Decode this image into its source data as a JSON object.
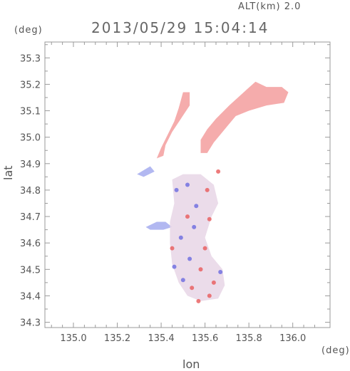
{
  "header": {
    "altitude": "ALT(km)  2.0",
    "timestamp": "2013/05/29 15:04:14",
    "y_unit": "(deg)",
    "x_unit": "(deg)",
    "xlabel": "lon",
    "ylabel": "lat"
  },
  "chart_data": {
    "type": "heatmap",
    "title": "2013/05/29 15:04:14",
    "subtitle": "ALT(km)  2.0",
    "xlabel": "lon",
    "ylabel": "lat",
    "x_unit": "(deg)",
    "y_unit": "(deg)",
    "xlim": [
      134.87,
      136.17
    ],
    "ylim": [
      34.28,
      35.36
    ],
    "x_ticks": [
      135.0,
      135.2,
      135.4,
      135.6,
      135.8,
      136.0
    ],
    "x_tick_labels": [
      "135.0",
      "135.2",
      "135.4",
      "135.6",
      "135.8",
      "136.0"
    ],
    "y_ticks": [
      34.3,
      34.4,
      34.5,
      34.6,
      34.7,
      34.8,
      34.9,
      35.0,
      35.1,
      35.2,
      35.3
    ],
    "y_tick_labels": [
      "34.3",
      "34.4",
      "34.5",
      "34.6",
      "34.7",
      "34.8",
      "34.9",
      "35.0",
      "35.1",
      "35.2",
      "35.3"
    ],
    "grid": false,
    "colors": {
      "positive": "#f4a3a3",
      "negative": "#aab0f0",
      "strong_positive": "#e85a5a",
      "strong_negative": "#6a6ae0"
    },
    "regions": [
      {
        "name": "north-east-band",
        "sign": "positive",
        "polygon": [
          [
            135.71,
            35.12
          ],
          [
            135.79,
            35.18
          ],
          [
            135.83,
            35.21
          ],
          [
            135.88,
            35.19
          ],
          [
            135.95,
            35.19
          ],
          [
            135.98,
            35.17
          ],
          [
            135.96,
            35.13
          ],
          [
            135.88,
            35.12
          ],
          [
            135.8,
            35.1
          ],
          [
            135.74,
            35.08
          ],
          [
            135.7,
            35.04
          ],
          [
            135.64,
            34.98
          ],
          [
            135.61,
            34.94
          ],
          [
            135.58,
            34.94
          ],
          [
            135.58,
            34.99
          ],
          [
            135.61,
            35.03
          ],
          [
            135.65,
            35.07
          ]
        ]
      },
      {
        "name": "north-west-band",
        "sign": "positive",
        "polygon": [
          [
            135.5,
            35.17
          ],
          [
            135.53,
            35.17
          ],
          [
            135.53,
            35.12
          ],
          [
            135.49,
            35.07
          ],
          [
            135.45,
            35.02
          ],
          [
            135.42,
            34.97
          ],
          [
            135.41,
            34.93
          ],
          [
            135.38,
            34.92
          ],
          [
            135.4,
            34.96
          ],
          [
            135.43,
            35.01
          ],
          [
            135.46,
            35.06
          ],
          [
            135.48,
            35.11
          ]
        ]
      },
      {
        "name": "west-small",
        "sign": "negative",
        "polygon": [
          [
            135.29,
            34.86
          ],
          [
            135.35,
            34.89
          ],
          [
            135.37,
            34.87
          ],
          [
            135.32,
            34.85
          ]
        ]
      },
      {
        "name": "west-tongue",
        "sign": "negative",
        "polygon": [
          [
            135.33,
            34.66
          ],
          [
            135.38,
            34.68
          ],
          [
            135.42,
            34.68
          ],
          [
            135.45,
            34.66
          ],
          [
            135.41,
            34.65
          ],
          [
            135.35,
            34.65
          ]
        ]
      },
      {
        "name": "osaka-core",
        "sign": "mixed",
        "polygon": [
          [
            135.45,
            34.84
          ],
          [
            135.5,
            34.86
          ],
          [
            135.58,
            34.86
          ],
          [
            135.64,
            34.82
          ],
          [
            135.66,
            34.75
          ],
          [
            135.63,
            34.7
          ],
          [
            135.6,
            34.62
          ],
          [
            135.63,
            34.55
          ],
          [
            135.68,
            34.5
          ],
          [
            135.69,
            34.44
          ],
          [
            135.66,
            34.39
          ],
          [
            135.58,
            34.38
          ],
          [
            135.52,
            34.4
          ],
          [
            135.48,
            34.45
          ],
          [
            135.45,
            34.52
          ],
          [
            135.44,
            34.6
          ],
          [
            135.44,
            34.68
          ],
          [
            135.46,
            34.75
          ]
        ]
      }
    ],
    "scatter_points": [
      {
        "lon": 135.62,
        "lat": 34.4,
        "sign": "positive"
      },
      {
        "lon": 135.57,
        "lat": 34.38,
        "sign": "positive"
      },
      {
        "lon": 135.66,
        "lat": 34.87,
        "sign": "positive"
      },
      {
        "lon": 135.52,
        "lat": 34.7,
        "sign": "positive"
      },
      {
        "lon": 135.55,
        "lat": 34.66,
        "sign": "negative"
      },
      {
        "lon": 135.49,
        "lat": 34.62,
        "sign": "negative"
      },
      {
        "lon": 135.6,
        "lat": 34.58,
        "sign": "positive"
      },
      {
        "lon": 135.53,
        "lat": 34.54,
        "sign": "negative"
      },
      {
        "lon": 135.58,
        "lat": 34.5,
        "sign": "positive"
      },
      {
        "lon": 135.5,
        "lat": 34.46,
        "sign": "negative"
      },
      {
        "lon": 135.64,
        "lat": 34.45,
        "sign": "positive"
      },
      {
        "lon": 135.56,
        "lat": 34.74,
        "sign": "negative"
      },
      {
        "lon": 135.47,
        "lat": 34.8,
        "sign": "negative"
      },
      {
        "lon": 135.61,
        "lat": 34.8,
        "sign": "positive"
      },
      {
        "lon": 135.52,
        "lat": 34.82,
        "sign": "negative"
      },
      {
        "lon": 135.67,
        "lat": 34.49,
        "sign": "negative"
      },
      {
        "lon": 135.45,
        "lat": 34.58,
        "sign": "positive"
      },
      {
        "lon": 135.54,
        "lat": 34.43,
        "sign": "positive"
      },
      {
        "lon": 135.46,
        "lat": 34.51,
        "sign": "negative"
      },
      {
        "lon": 135.62,
        "lat": 34.69,
        "sign": "positive"
      }
    ]
  }
}
